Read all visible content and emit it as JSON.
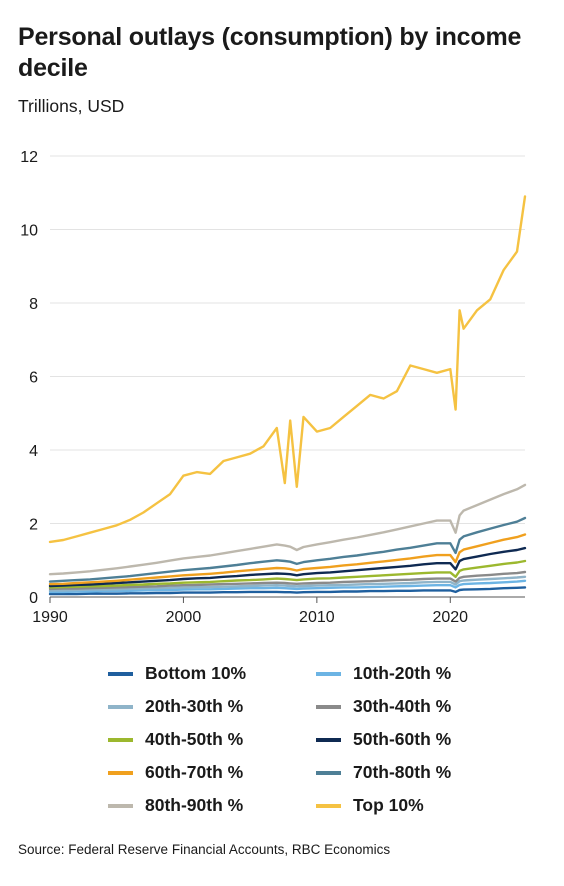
{
  "header": {
    "title": "Personal outlays (consumption) by income decile",
    "subtitle": "Trillions, USD"
  },
  "footer": {
    "source": "Source: Federal Reserve Financial Accounts, RBC Economics"
  },
  "chart_data": {
    "type": "line",
    "title": "Personal outlays (consumption) by income decile",
    "subtitle": "Trillions, USD",
    "xlabel": "",
    "ylabel": "",
    "xlim": [
      1990,
      2025.6
    ],
    "ylim": [
      0,
      12
    ],
    "x_ticks": [
      "1990",
      "2000",
      "2010",
      "2020"
    ],
    "y_ticks": [
      "0",
      "2",
      "4",
      "6",
      "8",
      "10",
      "12"
    ],
    "grid": "horizontal",
    "legend_position": "bottom",
    "x": [
      1990,
      1991,
      1992,
      1993,
      1994,
      1995,
      1996,
      1997,
      1998,
      1999,
      2000,
      2001,
      2002,
      2003,
      2004,
      2005,
      2006,
      2007,
      2007.6,
      2008,
      2008.5,
      2009,
      2010,
      2011,
      2012,
      2013,
      2014,
      2015,
      2016,
      2017,
      2018,
      2019,
      2020,
      2020.4,
      2020.7,
      2021,
      2022,
      2023,
      2024,
      2025,
      2025.6
    ],
    "series": [
      {
        "name": "Bottom 10%",
        "color": "#1f5f9e",
        "values": [
          0.08,
          0.08,
          0.08,
          0.09,
          0.09,
          0.09,
          0.1,
          0.1,
          0.11,
          0.11,
          0.12,
          0.12,
          0.12,
          0.13,
          0.13,
          0.14,
          0.14,
          0.14,
          0.13,
          0.13,
          0.12,
          0.13,
          0.14,
          0.14,
          0.15,
          0.15,
          0.16,
          0.16,
          0.17,
          0.17,
          0.18,
          0.18,
          0.18,
          0.14,
          0.19,
          0.2,
          0.21,
          0.22,
          0.24,
          0.25,
          0.26
        ]
      },
      {
        "name": "10th-20th %",
        "color": "#6cb4e4",
        "values": [
          0.14,
          0.14,
          0.15,
          0.15,
          0.16,
          0.16,
          0.17,
          0.18,
          0.19,
          0.19,
          0.2,
          0.21,
          0.21,
          0.22,
          0.23,
          0.24,
          0.24,
          0.25,
          0.24,
          0.23,
          0.22,
          0.23,
          0.24,
          0.25,
          0.26,
          0.26,
          0.27,
          0.28,
          0.29,
          0.3,
          0.31,
          0.32,
          0.32,
          0.26,
          0.33,
          0.35,
          0.37,
          0.38,
          0.4,
          0.42,
          0.44
        ]
      },
      {
        "name": "20th-30th %",
        "color": "#8fb4c9",
        "values": [
          0.18,
          0.18,
          0.19,
          0.2,
          0.2,
          0.21,
          0.22,
          0.23,
          0.24,
          0.25,
          0.26,
          0.27,
          0.27,
          0.28,
          0.29,
          0.3,
          0.31,
          0.32,
          0.31,
          0.3,
          0.29,
          0.3,
          0.31,
          0.32,
          0.33,
          0.34,
          0.35,
          0.36,
          0.37,
          0.38,
          0.4,
          0.41,
          0.41,
          0.34,
          0.43,
          0.45,
          0.47,
          0.49,
          0.51,
          0.53,
          0.55
        ]
      },
      {
        "name": "30th-40th %",
        "color": "#8a8a8a",
        "values": [
          0.22,
          0.23,
          0.23,
          0.24,
          0.25,
          0.26,
          0.27,
          0.28,
          0.29,
          0.31,
          0.32,
          0.33,
          0.34,
          0.35,
          0.36,
          0.37,
          0.38,
          0.39,
          0.38,
          0.37,
          0.36,
          0.37,
          0.38,
          0.39,
          0.41,
          0.42,
          0.43,
          0.45,
          0.46,
          0.47,
          0.49,
          0.5,
          0.5,
          0.42,
          0.52,
          0.55,
          0.58,
          0.6,
          0.63,
          0.65,
          0.68
        ]
      },
      {
        "name": "40th-50th %",
        "color": "#9cb82e",
        "values": [
          0.26,
          0.27,
          0.28,
          0.29,
          0.3,
          0.31,
          0.33,
          0.34,
          0.36,
          0.37,
          0.39,
          0.4,
          0.41,
          0.43,
          0.45,
          0.46,
          0.48,
          0.5,
          0.49,
          0.48,
          0.46,
          0.48,
          0.5,
          0.51,
          0.53,
          0.55,
          0.57,
          0.59,
          0.61,
          0.63,
          0.65,
          0.67,
          0.67,
          0.55,
          0.71,
          0.75,
          0.8,
          0.85,
          0.9,
          0.94,
          0.98
        ]
      },
      {
        "name": "50th-60th %",
        "color": "#0f2a52",
        "values": [
          0.3,
          0.31,
          0.33,
          0.34,
          0.36,
          0.38,
          0.4,
          0.42,
          0.44,
          0.46,
          0.49,
          0.51,
          0.52,
          0.55,
          0.57,
          0.6,
          0.62,
          0.64,
          0.63,
          0.62,
          0.59,
          0.62,
          0.65,
          0.67,
          0.7,
          0.73,
          0.76,
          0.79,
          0.82,
          0.85,
          0.89,
          0.92,
          0.92,
          0.75,
          0.98,
          1.03,
          1.1,
          1.17,
          1.23,
          1.28,
          1.33
        ]
      },
      {
        "name": "60th-70th %",
        "color": "#f0a01e",
        "values": [
          0.35,
          0.36,
          0.38,
          0.4,
          0.42,
          0.44,
          0.47,
          0.5,
          0.53,
          0.56,
          0.59,
          0.61,
          0.63,
          0.66,
          0.7,
          0.73,
          0.76,
          0.79,
          0.78,
          0.76,
          0.72,
          0.76,
          0.79,
          0.82,
          0.86,
          0.89,
          0.93,
          0.97,
          1.01,
          1.05,
          1.1,
          1.14,
          1.14,
          0.95,
          1.22,
          1.29,
          1.38,
          1.47,
          1.56,
          1.63,
          1.7
        ]
      },
      {
        "name": "70th-80th %",
        "color": "#4e7f96",
        "values": [
          0.42,
          0.44,
          0.46,
          0.48,
          0.51,
          0.54,
          0.57,
          0.61,
          0.65,
          0.69,
          0.73,
          0.76,
          0.79,
          0.83,
          0.87,
          0.92,
          0.96,
          1.0,
          0.98,
          0.96,
          0.9,
          0.95,
          1.0,
          1.04,
          1.09,
          1.13,
          1.18,
          1.23,
          1.29,
          1.34,
          1.4,
          1.46,
          1.46,
          1.2,
          1.56,
          1.65,
          1.76,
          1.86,
          1.96,
          2.05,
          2.15
        ]
      },
      {
        "name": "80th-90th %",
        "color": "#bdb8ad",
        "values": [
          0.62,
          0.64,
          0.67,
          0.7,
          0.74,
          0.78,
          0.83,
          0.88,
          0.93,
          0.99,
          1.05,
          1.09,
          1.13,
          1.19,
          1.25,
          1.31,
          1.37,
          1.43,
          1.4,
          1.37,
          1.28,
          1.36,
          1.43,
          1.49,
          1.56,
          1.62,
          1.69,
          1.76,
          1.84,
          1.92,
          2.0,
          2.08,
          2.08,
          1.75,
          2.22,
          2.35,
          2.5,
          2.65,
          2.8,
          2.93,
          3.05
        ]
      },
      {
        "name": "Top 10%",
        "color": "#f5c242",
        "values": [
          1.5,
          1.55,
          1.65,
          1.75,
          1.85,
          1.95,
          2.1,
          2.3,
          2.55,
          2.8,
          3.3,
          3.4,
          3.35,
          3.7,
          3.8,
          3.9,
          4.1,
          4.6,
          3.1,
          4.8,
          3.0,
          4.9,
          4.5,
          4.6,
          4.9,
          5.2,
          5.5,
          5.4,
          5.6,
          6.3,
          6.2,
          6.1,
          6.2,
          5.1,
          7.8,
          7.3,
          7.8,
          8.1,
          8.9,
          9.4,
          10.9
        ]
      }
    ]
  }
}
